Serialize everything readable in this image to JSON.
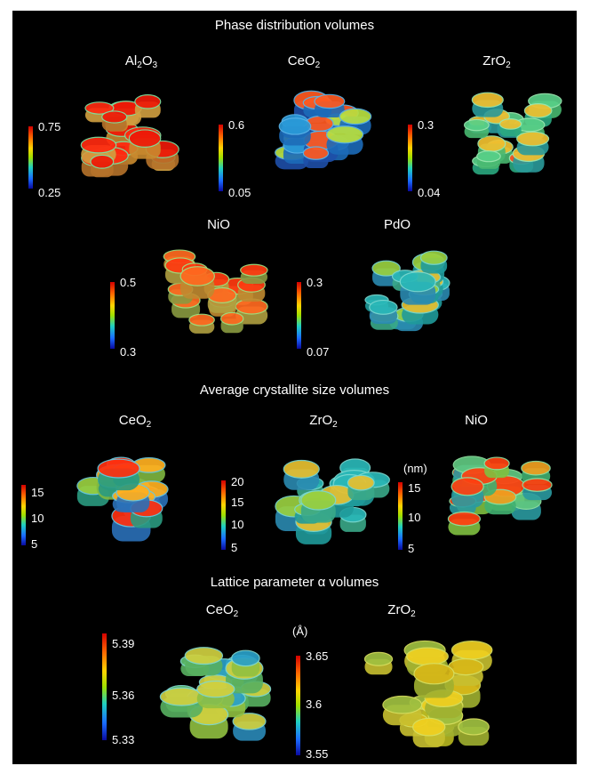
{
  "sections": {
    "phase": {
      "title": "Phase distribution volumes",
      "panels": [
        {
          "id": "al2o3",
          "label": "Al",
          "sub1": "2",
          "mid": "O",
          "sub2": "3",
          "max": "0.75",
          "min": "0.25",
          "palette": "red"
        },
        {
          "id": "ceo2",
          "label": "CeO",
          "sub1": "2",
          "mid": "",
          "sub2": "",
          "max": "0.6",
          "min": "0.05",
          "palette": "blue"
        },
        {
          "id": "zro2",
          "label": "ZrO",
          "sub1": "2",
          "mid": "",
          "sub2": "",
          "max": "0.3",
          "min": "0.04",
          "palette": "green"
        },
        {
          "id": "nio",
          "label": "NiO",
          "sub1": "",
          "mid": "",
          "sub2": "",
          "max": "0.5",
          "min": "0.3",
          "palette": "orange"
        },
        {
          "id": "pdo",
          "label": "PdO",
          "sub1": "",
          "mid": "",
          "sub2": "",
          "max": "0.3",
          "min": "0.07",
          "palette": "teal"
        }
      ]
    },
    "crystallite": {
      "title": "Average crystallite size volumes",
      "unit": "(nm)",
      "panels": [
        {
          "id": "ceo2",
          "label": "CeO",
          "sub1": "2",
          "ticks": [
            "15",
            "10",
            "5"
          ],
          "palette": "mixed"
        },
        {
          "id": "zro2",
          "label": "ZrO",
          "sub1": "2",
          "ticks": [
            "20",
            "15",
            "10",
            "5"
          ],
          "palette": "teal"
        },
        {
          "id": "nio",
          "label": "NiO",
          "sub1": "",
          "ticks": [
            "15",
            "10",
            "5"
          ],
          "palette": "greenorange"
        }
      ]
    },
    "lattice": {
      "title": "Lattice parameter α volumes",
      "unit": "(Å)",
      "panels": [
        {
          "id": "ceo2",
          "label": "CeO",
          "sub1": "2",
          "ticks": [
            "5.39",
            "5.36",
            "5.33"
          ],
          "palette": "greenblue"
        },
        {
          "id": "zro2",
          "label": "ZrO",
          "sub1": "2",
          "ticks": [
            "3.65",
            "3.6",
            "3.55"
          ],
          "palette": "yellow"
        }
      ]
    }
  },
  "colors": {
    "background": "#000000",
    "text": "#ffffff",
    "colormap": [
      "#d40000",
      "#ff6a00",
      "#ffd400",
      "#a0e000",
      "#1fd0c0",
      "#1a6cff",
      "#0a0aa0"
    ]
  }
}
